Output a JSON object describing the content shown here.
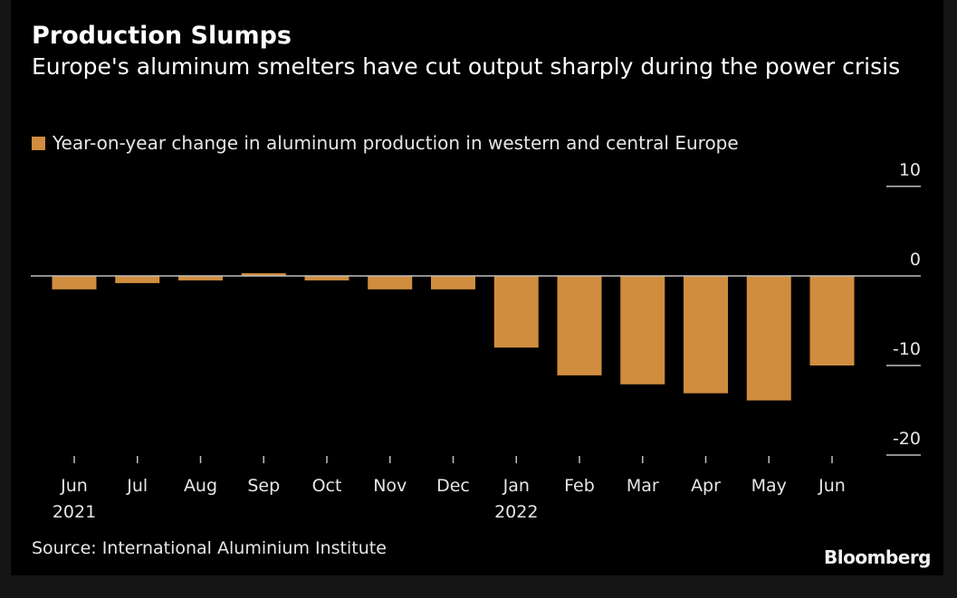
{
  "header": {
    "title": "Production Slumps",
    "subtitle": "Europe's aluminum smelters have cut output sharply during the power crisis"
  },
  "legend": {
    "label": "Year-on-year change in aluminum production in western and central Europe"
  },
  "footer": {
    "source": "Source: International Aluminium Institute",
    "brand": "Bloomberg"
  },
  "colors": {
    "bar": "#d08d3f",
    "background": "#000000",
    "axis": "#bfbfbf",
    "text": "#e6e6e6"
  },
  "chart_data": {
    "type": "bar",
    "title": "Production Slumps",
    "subtitle": "Europe's aluminum smelters have cut output sharply during the power crisis",
    "xlabel": "",
    "ylabel": "",
    "categories": [
      "Jun 2021",
      "Jul",
      "Aug",
      "Sep",
      "Oct",
      "Nov",
      "Dec",
      "Jan 2022",
      "Feb",
      "Mar",
      "Apr",
      "May",
      "Jun"
    ],
    "x_tick_labels": [
      {
        "month": "Jun",
        "year": "2021"
      },
      {
        "month": "Jul",
        "year": ""
      },
      {
        "month": "Aug",
        "year": ""
      },
      {
        "month": "Sep",
        "year": ""
      },
      {
        "month": "Oct",
        "year": ""
      },
      {
        "month": "Nov",
        "year": ""
      },
      {
        "month": "Dec",
        "year": ""
      },
      {
        "month": "Jan",
        "year": "2022"
      },
      {
        "month": "Feb",
        "year": ""
      },
      {
        "month": "Mar",
        "year": ""
      },
      {
        "month": "Apr",
        "year": ""
      },
      {
        "month": "May",
        "year": ""
      },
      {
        "month": "Jun",
        "year": ""
      }
    ],
    "series": [
      {
        "name": "Year-on-year change in aluminum production in western and central Europe",
        "values": [
          -1.5,
          -0.8,
          -0.5,
          0.3,
          -0.5,
          -1.5,
          -1.5,
          -8.0,
          -11.1,
          -12.1,
          -13.1,
          -13.9,
          -10.0
        ]
      }
    ],
    "ylim": [
      -20,
      10
    ],
    "y_ticks": [
      10,
      0,
      -10,
      -20
    ],
    "y_axis_side": "right",
    "grid": false,
    "legend_position": "top-left"
  }
}
